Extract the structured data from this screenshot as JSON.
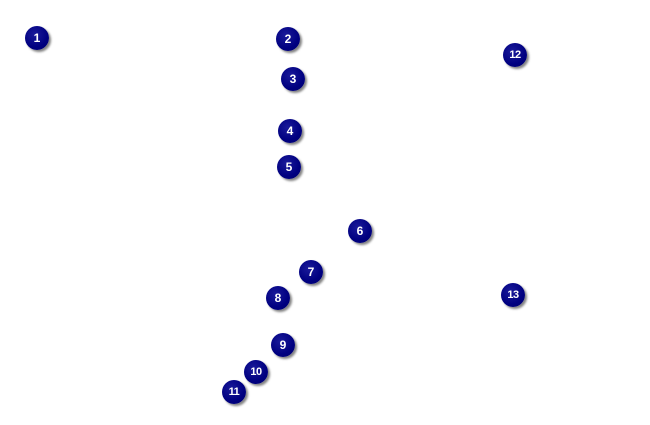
{
  "colors": {
    "marker_fill": "#000080",
    "marker_text": "#ffffff",
    "background": "#ffffff"
  },
  "markers": [
    "1",
    "2",
    "3",
    "4",
    "5",
    "6",
    "7",
    "8",
    "9",
    "10",
    "11",
    "12",
    "13"
  ]
}
